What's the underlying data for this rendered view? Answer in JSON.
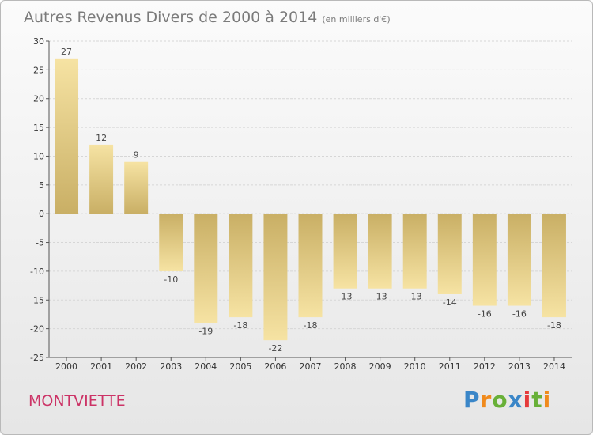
{
  "header": {
    "title": "Autres Revenus Divers de 2000 à 2014",
    "subtitle": "(en milliers d'€)"
  },
  "footer": {
    "location": "MONTVIETTE",
    "logo": "Proxiti"
  },
  "colors": {
    "bar_light": "#f6e3a3",
    "bar_dark": "#c9af65",
    "grid": "#d6d6d6",
    "location": "#cc3366"
  },
  "chart_data": {
    "type": "bar",
    "title": "Autres Revenus Divers de 2000 à 2014",
    "subtitle": "(en milliers d'€)",
    "categories": [
      "2000",
      "2001",
      "2002",
      "2003",
      "2004",
      "2005",
      "2006",
      "2007",
      "2008",
      "2009",
      "2010",
      "2011",
      "2012",
      "2013",
      "2014"
    ],
    "values": [
      27,
      12,
      9,
      -10,
      -19,
      -18,
      -22,
      -18,
      -13,
      -13,
      -13,
      -14,
      -16,
      -16,
      -18
    ],
    "data_labels": [
      "27",
      "12",
      "9",
      "-10",
      "-19",
      "-18",
      "-22",
      "-18",
      "-13",
      "-13",
      "-13",
      "-14",
      "-16",
      "-16",
      "-18"
    ],
    "ylim": [
      -25,
      30
    ],
    "yticks": [
      30,
      25,
      20,
      15,
      10,
      5,
      0,
      -5,
      -10,
      -15,
      -20,
      -25
    ],
    "grid": true,
    "legend": "none"
  }
}
